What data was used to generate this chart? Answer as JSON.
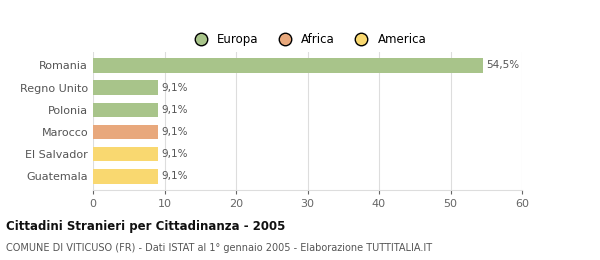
{
  "categories": [
    "Guatemala",
    "El Salvador",
    "Marocco",
    "Polonia",
    "Regno Unito",
    "Romania"
  ],
  "values": [
    9.1,
    9.1,
    9.1,
    9.1,
    9.1,
    54.5
  ],
  "colors": [
    "#f9d870",
    "#f9d870",
    "#e8a87c",
    "#a8c48a",
    "#a8c48a",
    "#a8c48a"
  ],
  "labels": [
    "9,1%",
    "9,1%",
    "9,1%",
    "9,1%",
    "9,1%",
    "54,5%"
  ],
  "legend": [
    {
      "label": "Europa",
      "color": "#a8c48a"
    },
    {
      "label": "Africa",
      "color": "#e8a87c"
    },
    {
      "label": "America",
      "color": "#f9d870"
    }
  ],
  "xlim": [
    0,
    60
  ],
  "xticks": [
    0,
    10,
    20,
    30,
    40,
    50,
    60
  ],
  "title": "Cittadini Stranieri per Cittadinanza - 2005",
  "subtitle": "COMUNE DI VITICUSO (FR) - Dati ISTAT al 1° gennaio 2005 - Elaborazione TUTTITALIA.IT",
  "background_color": "#ffffff",
  "grid_color": "#dddddd",
  "bar_height": 0.65
}
